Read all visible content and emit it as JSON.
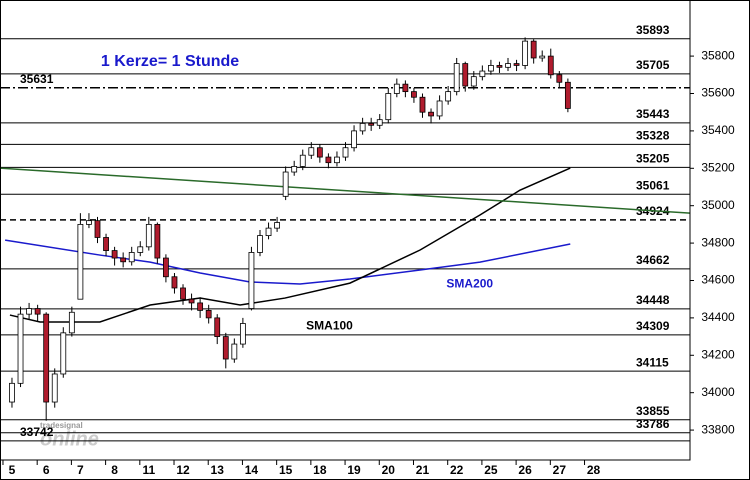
{
  "chart_data": {
    "type": "candlestick",
    "annotations": [
      {
        "text": "1 Kerze= 1 Stunde",
        "x": 2.6,
        "y": 35770,
        "color": "#1a1acc"
      },
      {
        "text": "SMA200",
        "x": 12.7,
        "y": 34580,
        "color": "#1a1acc"
      },
      {
        "text": "SMA100",
        "x": 8.6,
        "y": 34355,
        "color": "#000000"
      }
    ],
    "watermark": [
      "tradesignal",
      "online"
    ],
    "levels": [
      35893,
      35705,
      35631,
      35443,
      35328,
      35205,
      35061,
      34924,
      34662,
      34448,
      34309,
      34115,
      33855,
      33786,
      33742
    ],
    "level_styles": [
      "solid",
      "solid",
      "dashdot",
      "solid",
      "solid",
      "solid",
      "solid",
      "dashed",
      "solid",
      "solid",
      "solid",
      "solid",
      "solid",
      "solid",
      "solid"
    ],
    "level_label_side": [
      "right",
      "right",
      "left",
      "right",
      "right",
      "right",
      "right",
      "right",
      "right",
      "right",
      "right",
      "right",
      "right",
      "right",
      "left"
    ],
    "candles": {
      "x": [
        0,
        0.25,
        0.5,
        0.75,
        1,
        1.25,
        1.5,
        1.75,
        2,
        2.25,
        2.5,
        2.75,
        3,
        3.25,
        3.5,
        3.75,
        4,
        4.25,
        4.5,
        4.75,
        5,
        5.25,
        5.5,
        5.75,
        6,
        6.25,
        6.5,
        6.75,
        7,
        7.25,
        7.5,
        7.75,
        8,
        8.25,
        8.5,
        8.75,
        9,
        9.25,
        9.5,
        9.75,
        10,
        10.25,
        10.5,
        10.75,
        11,
        11.25,
        11.5,
        11.75,
        12,
        12.25,
        12.5,
        12.75,
        13,
        13.25,
        13.5,
        13.75,
        14,
        14.25,
        14.5,
        14.75,
        15,
        15.25,
        15.5,
        15.75,
        16,
        16.25
      ],
      "open": [
        33950,
        34050,
        34420,
        34450,
        34420,
        33950,
        34100,
        34320,
        34500,
        34900,
        34920,
        34830,
        34760,
        34720,
        34700,
        34750,
        34780,
        34900,
        34720,
        34620,
        34560,
        34500,
        34480,
        34440,
        34400,
        34300,
        34180,
        34260,
        34450,
        34750,
        34840,
        34880,
        35050,
        35180,
        35210,
        35270,
        35310,
        35260,
        35230,
        35260,
        35310,
        35400,
        35440,
        35430,
        35460,
        35600,
        35650,
        35610,
        35580,
        35500,
        35480,
        35560,
        35610,
        35760,
        35640,
        35690,
        35720,
        35750,
        35740,
        35760,
        35750,
        35880,
        35790,
        35800,
        35700,
        35660
      ],
      "high": [
        34080,
        34460,
        34480,
        34470,
        34430,
        34130,
        34350,
        34460,
        34960,
        34960,
        34940,
        34850,
        34780,
        34750,
        34780,
        34810,
        34940,
        34910,
        34740,
        34640,
        34580,
        34530,
        34510,
        34470,
        34420,
        34320,
        34290,
        34400,
        34780,
        34870,
        34910,
        34940,
        35210,
        35240,
        35300,
        35340,
        35330,
        35280,
        35290,
        35340,
        35430,
        35470,
        35470,
        35490,
        35630,
        35680,
        35670,
        35630,
        35600,
        35520,
        35590,
        35640,
        35790,
        35770,
        35720,
        35750,
        35780,
        35770,
        35790,
        35780,
        35900,
        35890,
        35830,
        35840,
        35720,
        35680
      ],
      "low": [
        33920,
        34030,
        34390,
        34380,
        33850,
        33920,
        34080,
        34300,
        34500,
        34880,
        34800,
        34730,
        34680,
        34670,
        34680,
        34730,
        34760,
        34690,
        34590,
        34530,
        34470,
        34440,
        34400,
        34370,
        34260,
        34130,
        34160,
        34240,
        34440,
        34730,
        34820,
        34860,
        35030,
        35160,
        35190,
        35250,
        35230,
        35200,
        35210,
        35240,
        35290,
        35380,
        35400,
        35410,
        35440,
        35580,
        35580,
        35550,
        35470,
        35440,
        35460,
        35540,
        35590,
        35610,
        35620,
        35670,
        35700,
        35710,
        35720,
        35720,
        35730,
        35760,
        35770,
        35680,
        35630,
        35500
      ],
      "close": [
        34050,
        34420,
        34450,
        34420,
        33950,
        34100,
        34320,
        34430,
        34900,
        34920,
        34830,
        34760,
        34720,
        34700,
        34750,
        34780,
        34900,
        34720,
        34620,
        34560,
        34500,
        34480,
        34440,
        34400,
        34300,
        34180,
        34260,
        34370,
        34750,
        34840,
        34880,
        34910,
        35180,
        35210,
        35270,
        35310,
        35260,
        35230,
        35260,
        35310,
        35400,
        35440,
        35430,
        35460,
        35600,
        35650,
        35610,
        35580,
        35500,
        35480,
        35560,
        35610,
        35760,
        35640,
        35690,
        35720,
        35750,
        35740,
        35760,
        35750,
        35880,
        35790,
        35800,
        35700,
        35660,
        35520
      ],
      "up_color": "#ffffff",
      "down_color": "#b01c2e"
    },
    "lines": [
      {
        "color": "#1a1acc",
        "x": [
          -0.2,
          2.57,
          4.04,
          5.5,
          6.96,
          8.42,
          9.88,
          11.93,
          13.68,
          16.32
        ],
        "values": [
          34816,
          34736,
          34698,
          34640,
          34592,
          34581,
          34608,
          34656,
          34698,
          34795
        ]
      },
      {
        "color": "#000000",
        "x": [
          -0.06,
          0.82,
          2.57,
          4.04,
          5.5,
          6.67,
          7.98,
          9.88,
          11.93,
          13.68,
          14.85,
          16.32
        ],
        "values": [
          34415,
          34378,
          34378,
          34469,
          34506,
          34469,
          34506,
          34586,
          34763,
          34950,
          35083,
          35201
        ]
      },
      {
        "color": "#2a6a2a",
        "x": [
          -0.35,
          19.82
        ],
        "values": [
          35201,
          34960
        ]
      }
    ],
    "xlim": [
      -0.35,
      19.82
    ],
    "xticks": [
      {
        "value": 0,
        "label": "5"
      },
      {
        "value": 1,
        "label": "6"
      },
      {
        "value": 2,
        "label": "7"
      },
      {
        "value": 3,
        "label": "8"
      },
      {
        "value": 4,
        "label": "11"
      },
      {
        "value": 5,
        "label": "12"
      },
      {
        "value": 6,
        "label": "13"
      },
      {
        "value": 7,
        "label": "14"
      },
      {
        "value": 8,
        "label": "15"
      },
      {
        "value": 9,
        "label": "18"
      },
      {
        "value": 10,
        "label": "19"
      },
      {
        "value": 11,
        "label": "20"
      },
      {
        "value": 12,
        "label": "21"
      },
      {
        "value": 13,
        "label": "22"
      },
      {
        "value": 14,
        "label": "25"
      },
      {
        "value": 15,
        "label": "26"
      },
      {
        "value": 16,
        "label": "27"
      },
      {
        "value": 17,
        "label": "28"
      }
    ],
    "ylim": [
      33640,
      36100
    ],
    "yticks": [
      33800,
      34000,
      34200,
      34400,
      34600,
      34800,
      35000,
      35200,
      35400,
      35600,
      35800
    ]
  }
}
